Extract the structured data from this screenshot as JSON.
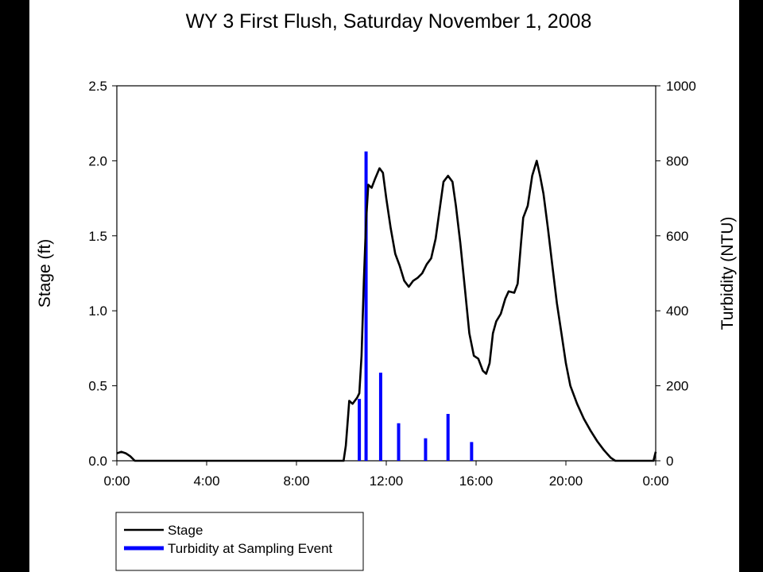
{
  "chart_data": {
    "type": "line",
    "title": "WY 3 First Flush, Saturday November 1, 2008",
    "xlabel": "",
    "ylabel_left": "Stage (ft)",
    "ylabel_right": "Turbidity (NTU)",
    "xlim_hours": [
      0,
      24
    ],
    "ylim_left": [
      0,
      2.5
    ],
    "ylim_right": [
      0,
      1000
    ],
    "x_ticks": [
      {
        "value": 0,
        "label": "0:00"
      },
      {
        "value": 4,
        "label": "4:00"
      },
      {
        "value": 8,
        "label": "8:00"
      },
      {
        "value": 12,
        "label": "12:00"
      },
      {
        "value": 16,
        "label": "16:00"
      },
      {
        "value": 20,
        "label": "20:00"
      },
      {
        "value": 24,
        "label": "0:00"
      }
    ],
    "y_left_ticks": [
      {
        "value": 0,
        "label": "0.0"
      },
      {
        "value": 0.5,
        "label": "0.5"
      },
      {
        "value": 1.0,
        "label": "1.0"
      },
      {
        "value": 1.5,
        "label": "1.5"
      },
      {
        "value": 2.0,
        "label": "2.0"
      },
      {
        "value": 2.5,
        "label": "2.5"
      }
    ],
    "y_right_ticks": [
      {
        "value": 0,
        "label": "0"
      },
      {
        "value": 200,
        "label": "200"
      },
      {
        "value": 400,
        "label": "400"
      },
      {
        "value": 600,
        "label": "600"
      },
      {
        "value": 800,
        "label": "800"
      },
      {
        "value": 1000,
        "label": "1000"
      }
    ],
    "series": [
      {
        "name": "Stage",
        "axis": "left",
        "color": "#000000",
        "points": [
          [
            0.0,
            0.05
          ],
          [
            0.2,
            0.06
          ],
          [
            0.4,
            0.05
          ],
          [
            0.6,
            0.03
          ],
          [
            0.8,
            0.0
          ],
          [
            2.0,
            0.0
          ],
          [
            4.0,
            0.0
          ],
          [
            6.0,
            0.0
          ],
          [
            8.0,
            0.0
          ],
          [
            10.1,
            0.0
          ],
          [
            10.2,
            0.1
          ],
          [
            10.3,
            0.3
          ],
          [
            10.35,
            0.4
          ],
          [
            10.5,
            0.38
          ],
          [
            10.7,
            0.42
          ],
          [
            10.8,
            0.45
          ],
          [
            10.9,
            0.7
          ],
          [
            11.0,
            1.2
          ],
          [
            11.1,
            1.6
          ],
          [
            11.2,
            1.84
          ],
          [
            11.35,
            1.82
          ],
          [
            11.5,
            1.88
          ],
          [
            11.7,
            1.95
          ],
          [
            11.85,
            1.92
          ],
          [
            12.0,
            1.75
          ],
          [
            12.2,
            1.55
          ],
          [
            12.4,
            1.38
          ],
          [
            12.6,
            1.3
          ],
          [
            12.8,
            1.2
          ],
          [
            13.0,
            1.16
          ],
          [
            13.2,
            1.2
          ],
          [
            13.4,
            1.22
          ],
          [
            13.6,
            1.25
          ],
          [
            13.8,
            1.31
          ],
          [
            14.0,
            1.35
          ],
          [
            14.2,
            1.48
          ],
          [
            14.4,
            1.7
          ],
          [
            14.55,
            1.86
          ],
          [
            14.75,
            1.9
          ],
          [
            14.95,
            1.86
          ],
          [
            15.1,
            1.7
          ],
          [
            15.3,
            1.45
          ],
          [
            15.5,
            1.15
          ],
          [
            15.7,
            0.85
          ],
          [
            15.9,
            0.7
          ],
          [
            16.1,
            0.68
          ],
          [
            16.3,
            0.6
          ],
          [
            16.45,
            0.58
          ],
          [
            16.6,
            0.65
          ],
          [
            16.75,
            0.85
          ],
          [
            16.9,
            0.93
          ],
          [
            17.1,
            0.98
          ],
          [
            17.3,
            1.08
          ],
          [
            17.45,
            1.13
          ],
          [
            17.7,
            1.12
          ],
          [
            17.85,
            1.18
          ],
          [
            18.0,
            1.45
          ],
          [
            18.1,
            1.62
          ],
          [
            18.3,
            1.7
          ],
          [
            18.5,
            1.9
          ],
          [
            18.7,
            2.0
          ],
          [
            18.85,
            1.9
          ],
          [
            19.0,
            1.78
          ],
          [
            19.2,
            1.55
          ],
          [
            19.4,
            1.3
          ],
          [
            19.6,
            1.05
          ],
          [
            19.8,
            0.85
          ],
          [
            20.0,
            0.65
          ],
          [
            20.2,
            0.5
          ],
          [
            20.5,
            0.38
          ],
          [
            20.8,
            0.28
          ],
          [
            21.1,
            0.2
          ],
          [
            21.4,
            0.13
          ],
          [
            21.7,
            0.07
          ],
          [
            22.0,
            0.02
          ],
          [
            22.2,
            0.0
          ],
          [
            23.9,
            0.0
          ],
          [
            24.0,
            0.06
          ]
        ]
      },
      {
        "name": "Turbidity at Sampling Event",
        "axis": "right",
        "color": "#0000ff",
        "points": [
          [
            10.8,
            165
          ],
          [
            11.1,
            825
          ],
          [
            11.75,
            235
          ],
          [
            12.55,
            100
          ],
          [
            13.75,
            60
          ],
          [
            14.75,
            125
          ],
          [
            15.8,
            50
          ]
        ]
      }
    ],
    "legend": {
      "position": "bottom-left",
      "items": [
        {
          "label": "Stage",
          "color": "#000000"
        },
        {
          "label": "Turbidity at Sampling Event",
          "color": "#0000ff"
        }
      ]
    },
    "grid": false
  }
}
